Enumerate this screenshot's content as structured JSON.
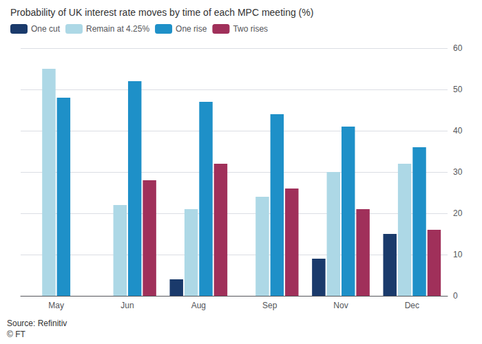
{
  "chart_data": {
    "type": "bar",
    "title": "Probability of UK interest rate moves by time of each MPC meeting (%)",
    "categories": [
      "May",
      "Jun",
      "Aug",
      "Sep",
      "Nov",
      "Dec"
    ],
    "series": [
      {
        "name": "One cut",
        "color": "#1a3a6b",
        "values": [
          0,
          0,
          4,
          0,
          9,
          15
        ]
      },
      {
        "name": "Remain at 4.25%",
        "color": "#add8e6",
        "values": [
          55,
          22,
          21,
          24,
          30,
          32
        ]
      },
      {
        "name": "One rise",
        "color": "#1e90c8",
        "values": [
          48,
          52,
          47,
          44,
          41,
          36
        ]
      },
      {
        "name": "Two rises",
        "color": "#a0305a",
        "values": [
          0,
          28,
          32,
          26,
          21,
          16
        ]
      }
    ],
    "ylim": [
      0,
      60
    ],
    "yticks": [
      0,
      10,
      20,
      30,
      40,
      50,
      60
    ],
    "grid": true,
    "legend": "upper left",
    "annotations": [
      "Source: Refinitiv",
      "© FT"
    ]
  }
}
